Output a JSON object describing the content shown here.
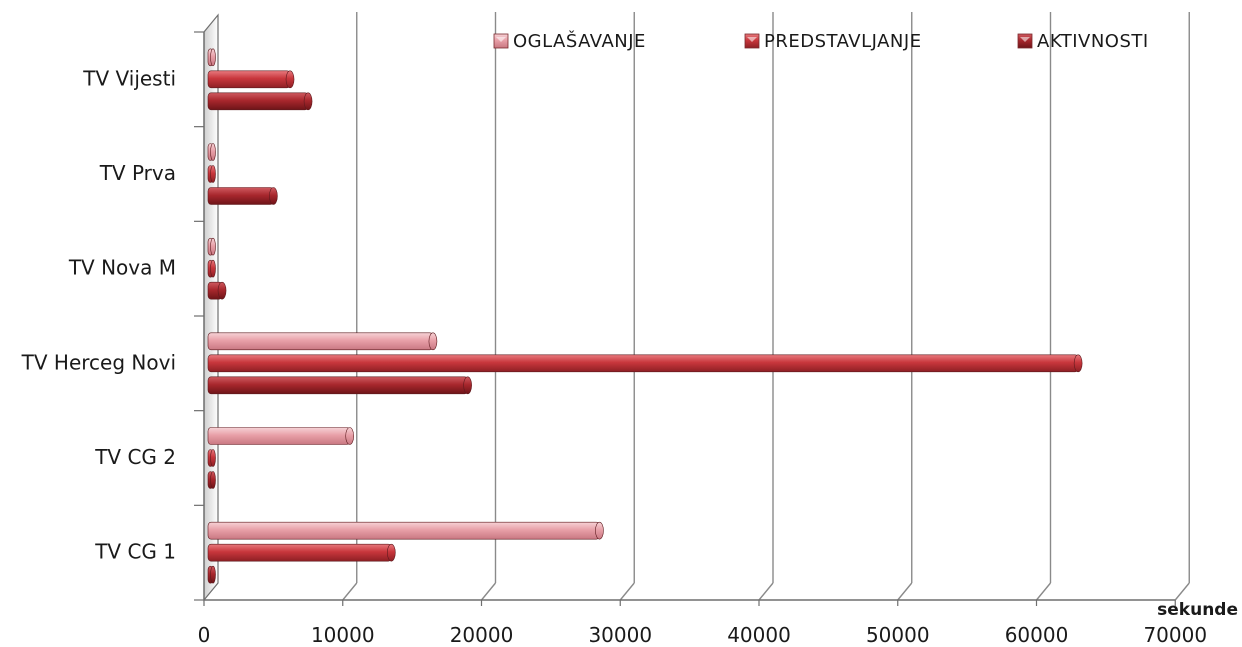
{
  "chart_data": {
    "type": "bar",
    "orientation": "horizontal",
    "categories": [
      "TV Vijesti",
      "TV Prva",
      "TV Nova M",
      "TV Herceg Novi",
      "TV CG 2",
      "TV CG 1"
    ],
    "series": [
      {
        "name": "OGLAŠAVANJE",
        "values": [
          300,
          300,
          300,
          16500,
          10500,
          28500
        ],
        "color": "#e8a0a8"
      },
      {
        "name": "PREDSTAVLJANJE",
        "values": [
          6200,
          500,
          500,
          63000,
          500,
          13500
        ],
        "color": "#c8363c"
      },
      {
        "name": "AKTIVNOSTI",
        "values": [
          7500,
          5000,
          1300,
          19000,
          500,
          500
        ],
        "color": "#a8272d"
      }
    ],
    "xlabel": "sekunde",
    "ylabel": "",
    "xlim": [
      0,
      70000
    ],
    "x_ticks": [
      "0",
      "10000",
      "20000",
      "30000",
      "40000",
      "50000",
      "60000",
      "70000"
    ],
    "grid": "vertical",
    "legend": "top-right"
  }
}
